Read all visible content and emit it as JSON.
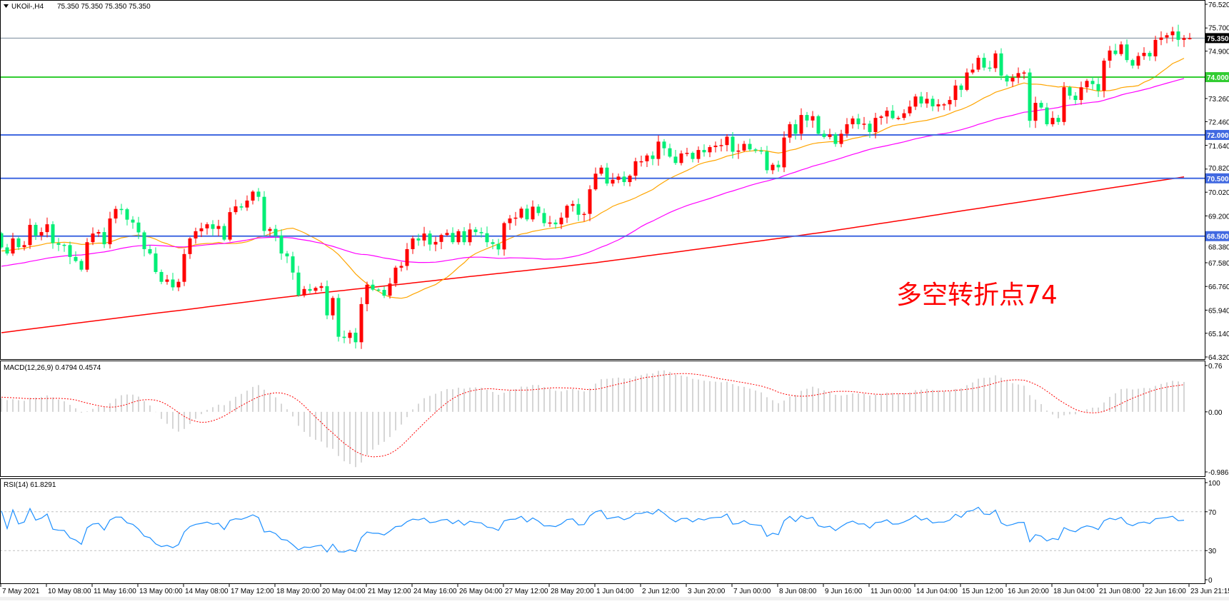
{
  "header": {
    "symbol": "UKOil-,H4",
    "ohlc": "75.350 75.350 75.350 75.350",
    "menu_icon": "triangle-down-icon"
  },
  "annotation": "多空转折点74",
  "colors": {
    "bull": "#ff0000",
    "bear": "#00ee76",
    "ma_fast": "#ffa500",
    "ma_mid": "#ff00ff",
    "ma_slow": "#ff0000",
    "level_blue": "#4169e1",
    "level_green": "#32cd32",
    "rsi": "#1e90ff",
    "macd_hist": "#c0c0c0",
    "macd_signal": "#ff0000",
    "bid_line": "#778899"
  },
  "price_axis": {
    "ticks": [
      "76.520",
      "75.700",
      "74.900",
      "73.260",
      "72.460",
      "71.640",
      "70.820",
      "70.020",
      "69.200",
      "68.380",
      "67.580",
      "66.760",
      "65.940",
      "65.140",
      "64.320"
    ],
    "range": [
      64.32,
      76.52
    ]
  },
  "levels": [
    {
      "value": 74.0,
      "label": "74.000",
      "color": "#32cd32"
    },
    {
      "value": 72.0,
      "label": "72.000",
      "color": "#4169e1"
    },
    {
      "value": 70.5,
      "label": "70.500",
      "color": "#4169e1"
    },
    {
      "value": 68.5,
      "label": "68.500",
      "color": "#4169e1"
    }
  ],
  "current_price": {
    "value": 75.35,
    "label": "75.350"
  },
  "macd": {
    "title": "MACD(12,26,9) 0.4794 0.4574",
    "ticks": [
      "0.76",
      "0.00",
      "-0.9862"
    ],
    "range": [
      -0.9862,
      0.76
    ]
  },
  "rsi": {
    "title": "RSI(14) 61.8291",
    "ticks": [
      "100",
      "70",
      "30",
      "0"
    ],
    "levels": [
      70,
      30
    ]
  },
  "chart_data": {
    "type": "candlestick",
    "title": "UKOil-,H4",
    "timeframe": "H4",
    "x_tick_labels": [
      "7 May 2021",
      "10 May 08:00",
      "11 May 16:00",
      "13 May 00:00",
      "14 May 08:00",
      "17 May 12:00",
      "18 May 20:00",
      "20 May 04:00",
      "21 May 12:00",
      "24 May 16:00",
      "26 May 04:00",
      "27 May 12:00",
      "28 May 20:00",
      "1 Jun 04:00",
      "2 Jun 12:00",
      "3 Jun 20:00",
      "7 Jun 00:00",
      "8 Jun 08:00",
      "9 Jun 16:00",
      "11 Jun 00:00",
      "14 Jun 04:00",
      "15 Jun 12:00",
      "16 Jun 20:00",
      "18 Jun 04:00",
      "21 Jun 08:00",
      "22 Jun 16:00",
      "23 Jun 21:15"
    ],
    "bars_per_tick_label": 8,
    "first_open": 68.6,
    "close": [
      68.11,
      67.9,
      68.42,
      68.12,
      68.19,
      68.89,
      68.52,
      68.64,
      68.91,
      68.26,
      68.2,
      68.19,
      67.78,
      67.64,
      67.34,
      68.29,
      68.59,
      68.64,
      68.22,
      69.11,
      69.44,
      69.43,
      69.07,
      68.97,
      68.63,
      68.05,
      67.9,
      67.26,
      66.92,
      67.0,
      66.73,
      66.92,
      67.88,
      68.42,
      68.67,
      68.77,
      68.91,
      68.75,
      68.85,
      68.38,
      69.33,
      69.53,
      69.49,
      69.73,
      70.04,
      69.86,
      68.68,
      68.75,
      68.52,
      67.9,
      67.8,
      67.24,
      66.45,
      66.67,
      66.61,
      66.71,
      66.77,
      65.76,
      66.36,
      65.02,
      64.98,
      65.16,
      64.83,
      66.15,
      66.82,
      66.65,
      66.64,
      66.44,
      66.86,
      67.41,
      67.47,
      68.05,
      68.42,
      68.35,
      68.59,
      68.21,
      68.3,
      68.54,
      68.61,
      68.29,
      68.67,
      68.29,
      68.73,
      68.64,
      68.6,
      68.29,
      68.23,
      68.04,
      68.95,
      69.11,
      69.14,
      69.45,
      69.08,
      69.52,
      69.3,
      68.95,
      68.97,
      68.91,
      69.14,
      69.55,
      69.61,
      69.24,
      69.27,
      70.12,
      70.66,
      70.87,
      70.32,
      70.45,
      70.56,
      70.37,
      70.59,
      71.09,
      71.09,
      71.29,
      71.17,
      71.77,
      71.54,
      71.25,
      71.03,
      71.36,
      71.38,
      71.17,
      71.48,
      71.4,
      71.58,
      71.63,
      71.65,
      71.94,
      71.42,
      71.46,
      71.69,
      71.5,
      71.46,
      71.43,
      70.78,
      70.97,
      70.88,
      71.91,
      72.37,
      72.04,
      72.69,
      72.5,
      72.65,
      72.04,
      71.93,
      72.02,
      71.69,
      72.04,
      72.37,
      72.57,
      72.37,
      72.39,
      72.1,
      72.59,
      72.64,
      72.84,
      72.58,
      72.59,
      72.75,
      72.98,
      73.33,
      73.09,
      73.25,
      72.99,
      73.06,
      73.06,
      73.21,
      73.71,
      73.56,
      74.16,
      74.26,
      74.67,
      74.33,
      74.31,
      74.82,
      74.05,
      73.85,
      73.98,
      74.14,
      74.16,
      72.49,
      73.11,
      72.95,
      72.37,
      72.59,
      72.45,
      73.65,
      73.36,
      73.21,
      73.65,
      73.87,
      73.76,
      73.53,
      74.57,
      74.92,
      74.8,
      75.13,
      74.59,
      74.4,
      74.73,
      74.84,
      74.72,
      75.29,
      75.37,
      75.45,
      75.58,
      75.29,
      75.35,
      75.35
    ],
    "ma_fast_period": 20,
    "ma_mid_period": 50,
    "ma_slow_at_tick_labels": [
      65.16,
      65.36,
      65.56,
      65.76,
      65.95,
      66.15,
      66.35,
      66.54,
      66.71,
      66.88,
      67.06,
      67.23,
      67.4,
      67.58,
      67.79,
      68.0,
      68.21,
      68.42,
      68.64,
      68.88,
      69.12,
      69.37,
      69.61,
      69.85,
      70.1,
      70.34,
      70.58
    ],
    "ylim": [
      64.32,
      76.52
    ]
  }
}
